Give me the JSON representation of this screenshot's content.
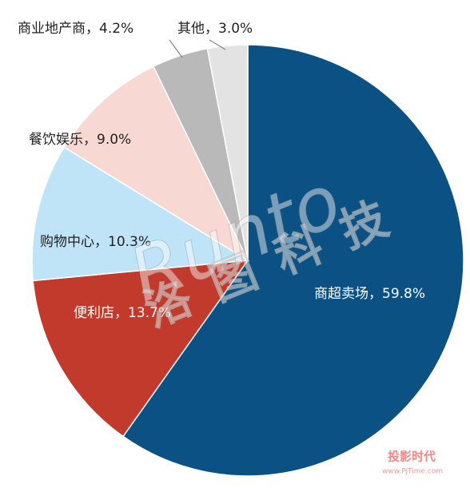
{
  "chart_data": {
    "type": "pie",
    "values": [
      59.8,
      13.7,
      10.3,
      9.0,
      4.2,
      3.0
    ],
    "value_labels": [
      "商超卖场，59.8%",
      "便利店，13.7%",
      "购物中心，10.3%",
      "餐饮娱乐，9.0%",
      "商业地产商，4.2%",
      "其他，3.0%"
    ],
    "colors": [
      "#0b5184",
      "#c23a2c",
      "#bfe3f7",
      "#f8d8d3",
      "#b9b9b9",
      "#e3e3e3"
    ],
    "start_angle": 90,
    "direction": "clockwise"
  },
  "watermark": {
    "brand": "Runto",
    "brand_cn": "洛图科技",
    "site": "投影时代",
    "url": "www.PjTime.com"
  }
}
